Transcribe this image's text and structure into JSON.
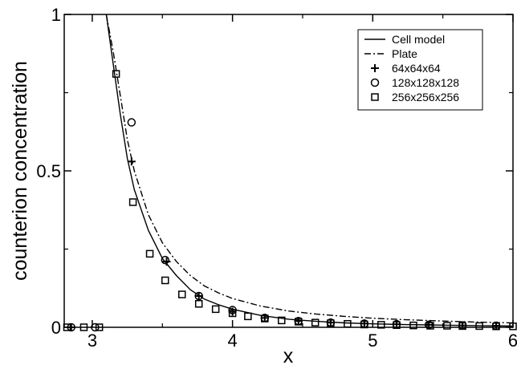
{
  "chart_data": {
    "type": "line",
    "xlabel": "x",
    "ylabel": "counterion concentration",
    "xlim": [
      2.8,
      6.0
    ],
    "ylim": [
      0,
      1
    ],
    "x_ticks": [
      3,
      4,
      5,
      6
    ],
    "x_tick_labels": [
      "3",
      "4",
      "5",
      "6"
    ],
    "y_ticks": [
      0,
      0.5,
      1
    ],
    "y_tick_labels": [
      "0",
      "0.5",
      "1"
    ],
    "legend_position": "top-right",
    "series": [
      {
        "name": "Cell model",
        "style": "solid",
        "x": [
          3.1,
          3.15,
          3.2,
          3.25,
          3.3,
          3.4,
          3.5,
          3.6,
          3.7,
          3.8,
          3.9,
          4.0,
          4.2,
          4.4,
          4.6,
          4.8,
          5.0,
          5.2,
          5.5,
          5.8,
          6.0
        ],
        "values": [
          1.0,
          0.84,
          0.68,
          0.54,
          0.44,
          0.31,
          0.22,
          0.165,
          0.12,
          0.09,
          0.072,
          0.058,
          0.038,
          0.026,
          0.019,
          0.014,
          0.011,
          0.009,
          0.007,
          0.005,
          0.004
        ]
      },
      {
        "name": "Plate",
        "style": "dashdot",
        "x": [
          3.1,
          3.15,
          3.2,
          3.25,
          3.3,
          3.4,
          3.5,
          3.6,
          3.7,
          3.8,
          3.9,
          4.0,
          4.2,
          4.4,
          4.6,
          4.8,
          5.0,
          5.2,
          5.5,
          5.8,
          6.0
        ],
        "values": [
          1.0,
          0.88,
          0.74,
          0.6,
          0.5,
          0.36,
          0.27,
          0.21,
          0.165,
          0.132,
          0.11,
          0.092,
          0.068,
          0.052,
          0.042,
          0.035,
          0.029,
          0.025,
          0.02,
          0.016,
          0.014
        ]
      },
      {
        "name": "64x64x64",
        "style": "plus",
        "x": [
          2.85,
          3.28,
          3.53,
          3.76,
          4.0,
          4.23,
          4.47,
          4.7,
          4.94,
          5.17,
          5.4,
          5.64,
          5.88
        ],
        "values": [
          0.0,
          0.53,
          0.21,
          0.1,
          0.05,
          0.03,
          0.02,
          0.015,
          0.012,
          0.01,
          0.008,
          0.006,
          0.005
        ]
      },
      {
        "name": "128x128x128",
        "style": "circle",
        "x": [
          2.85,
          3.02,
          3.28,
          3.52,
          3.76,
          4.0,
          4.23,
          4.47,
          4.7,
          4.94,
          5.17,
          5.4,
          5.64,
          5.88
        ],
        "values": [
          0.0,
          0.0,
          0.655,
          0.215,
          0.1,
          0.055,
          0.03,
          0.02,
          0.015,
          0.012,
          0.01,
          0.008,
          0.006,
          0.005
        ]
      },
      {
        "name": "256x256x256",
        "style": "square",
        "x": [
          2.82,
          2.94,
          3.05,
          3.17,
          3.29,
          3.41,
          3.52,
          3.64,
          3.76,
          3.88,
          4.0,
          4.11,
          4.23,
          4.35,
          4.47,
          4.59,
          4.7,
          4.82,
          4.94,
          5.06,
          5.17,
          5.29,
          5.41,
          5.53,
          5.64,
          5.76,
          5.88,
          6.0
        ],
        "values": [
          0.0,
          0.0,
          0.0,
          0.81,
          0.4,
          0.235,
          0.15,
          0.105,
          0.075,
          0.058,
          0.045,
          0.035,
          0.028,
          0.022,
          0.018,
          0.015,
          0.013,
          0.011,
          0.009,
          0.008,
          0.007,
          0.006,
          0.005,
          0.005,
          0.004,
          0.004,
          0.003,
          0.003
        ]
      }
    ]
  }
}
